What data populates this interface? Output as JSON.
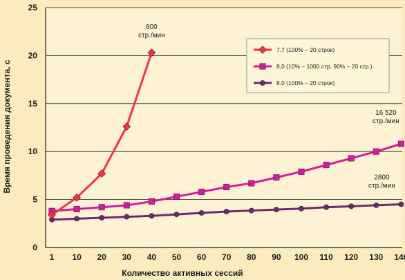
{
  "chart_data": {
    "type": "line",
    "title": "",
    "xlabel": "Количество активных сессий",
    "ylabel": "Время проведения документа, с",
    "x": [
      1,
      10,
      20,
      30,
      40,
      50,
      60,
      70,
      80,
      90,
      100,
      110,
      120,
      130,
      140
    ],
    "ylim": [
      0,
      25
    ],
    "yticks": [
      0,
      5,
      10,
      15,
      20,
      25
    ],
    "grid": true,
    "legend_position": "top-right",
    "series": [
      {
        "name": "7,7 (100% – 20 строк)",
        "color": "#f0324a",
        "marker": "diamond",
        "values": [
          3.4,
          5.2,
          7.7,
          12.6,
          20.3,
          null,
          null,
          null,
          null,
          null,
          null,
          null,
          null,
          null,
          null
        ]
      },
      {
        "name": "8,0 (10% – 1000 стр, 90% – 20 стр.)",
        "color": "#d21d9a",
        "marker": "square",
        "values": [
          3.8,
          4.0,
          4.2,
          4.4,
          4.8,
          5.3,
          5.8,
          6.3,
          6.7,
          7.3,
          7.9,
          8.6,
          9.3,
          10.0,
          10.8
        ]
      },
      {
        "name": "8,0 (100% – 20 строк)",
        "color": "#6b2a6e",
        "marker": "circle",
        "values": [
          2.9,
          3.0,
          3.1,
          3.2,
          3.3,
          3.45,
          3.6,
          3.75,
          3.85,
          3.95,
          4.05,
          4.2,
          4.3,
          4.4,
          4.5
        ]
      }
    ],
    "annotations": [
      {
        "lines": [
          "800",
          "стр./мин"
        ],
        "series": 0
      },
      {
        "lines": [
          "16 520",
          "стр./мин"
        ],
        "series": 1
      },
      {
        "lines": [
          "2800",
          "стр./мин"
        ],
        "series": 2
      }
    ]
  }
}
